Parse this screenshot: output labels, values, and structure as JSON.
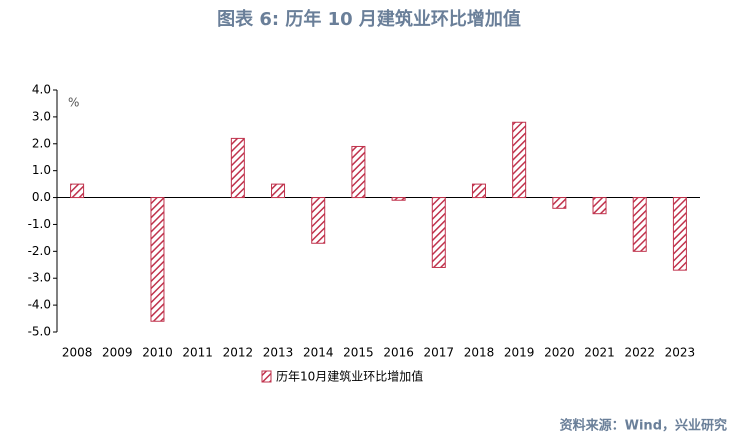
{
  "chart_data": {
    "type": "bar",
    "title": "图表 6:    历年 10 月建筑业环比增加值",
    "y_unit": "%",
    "categories": [
      "2008",
      "2009",
      "2010",
      "2011",
      "2012",
      "2013",
      "2014",
      "2015",
      "2016",
      "2017",
      "2018",
      "2019",
      "2020",
      "2021",
      "2022",
      "2023"
    ],
    "series": [
      {
        "name": "历年10月建筑业环比增加值",
        "color": "#c0334d",
        "values": [
          0.5,
          0,
          -4.6,
          0,
          2.2,
          0.5,
          -1.7,
          1.9,
          -0.1,
          -2.6,
          0.5,
          2.8,
          -0.4,
          -0.6,
          -2.0,
          -2.7
        ]
      }
    ],
    "ylim": [
      -5,
      4
    ],
    "yticks": [
      {
        "value": 4,
        "label": "4.0"
      },
      {
        "value": 3,
        "label": "3.0"
      },
      {
        "value": 2,
        "label": "2.0"
      },
      {
        "value": 1,
        "label": "1.0"
      },
      {
        "value": 0,
        "label": "0.0"
      },
      {
        "value": -1,
        "label": "-1.0"
      },
      {
        "value": -2,
        "label": "-2.0"
      },
      {
        "value": -3,
        "label": "-3.0"
      },
      {
        "value": -4,
        "label": "-4.0"
      },
      {
        "value": -5,
        "label": "-5.0"
      }
    ],
    "source": "资料来源：Wind，兴业研究"
  }
}
